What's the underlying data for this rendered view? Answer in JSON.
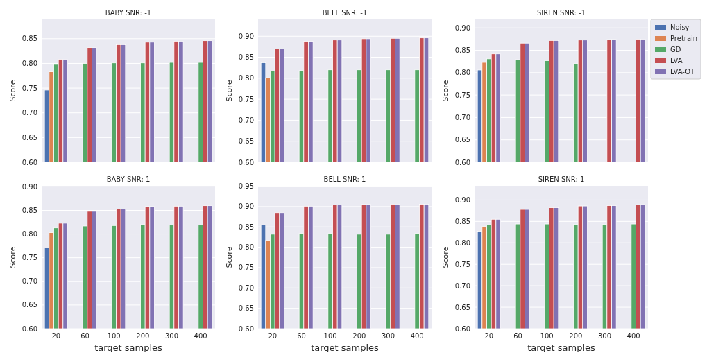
{
  "chart_data": [
    {
      "type": "bar",
      "title": "BABY  SNR: -1",
      "ylabel": "Score",
      "categories": [
        "20",
        "60",
        "100",
        "200",
        "300",
        "400"
      ],
      "ylim": [
        0.6,
        0.889
      ],
      "yticks": [
        {
          "value": 0.6,
          "label": "0.60"
        },
        {
          "value": 0.65,
          "label": "0.65"
        },
        {
          "value": 0.7,
          "label": "0.70"
        },
        {
          "value": 0.75,
          "label": "0.75"
        },
        {
          "value": 0.8,
          "label": "0.80"
        },
        {
          "value": 0.85,
          "label": "0.85"
        }
      ],
      "grid": "y",
      "tick_labels": "y",
      "series": [
        {
          "color": "#4c72b0",
          "values": [
            0.746,
            null,
            null,
            null,
            null,
            null
          ]
        },
        {
          "color": "#dd8452",
          "values": [
            0.783,
            null,
            null,
            null,
            null,
            null
          ]
        },
        {
          "color": "#55a868",
          "values": [
            0.798,
            0.8,
            0.801,
            0.801,
            0.802,
            0.802
          ]
        },
        {
          "color": "#c44e52",
          "values": [
            0.808,
            0.832,
            0.838,
            0.843,
            0.845,
            0.846
          ]
        },
        {
          "color": "#8172b3",
          "values": [
            0.808,
            0.832,
            0.838,
            0.843,
            0.845,
            0.846
          ]
        }
      ]
    },
    {
      "type": "bar",
      "title": "BELL  SNR: -1",
      "ylabel": "Score",
      "categories": [
        "20",
        "60",
        "100",
        "200",
        "300",
        "400"
      ],
      "ylim": [
        0.6,
        0.94
      ],
      "yticks": [
        {
          "value": 0.6,
          "label": "0.60"
        },
        {
          "value": 0.65,
          "label": "0.65"
        },
        {
          "value": 0.7,
          "label": "0.70"
        },
        {
          "value": 0.75,
          "label": "0.75"
        },
        {
          "value": 0.8,
          "label": "0.80"
        },
        {
          "value": 0.85,
          "label": "0.85"
        },
        {
          "value": 0.9,
          "label": "0.90"
        }
      ],
      "grid": "y",
      "tick_labels": "y",
      "series": [
        {
          "color": "#4c72b0",
          "values": [
            0.837,
            null,
            null,
            null,
            null,
            null
          ]
        },
        {
          "color": "#dd8452",
          "values": [
            0.801,
            null,
            null,
            null,
            null,
            null
          ]
        },
        {
          "color": "#55a868",
          "values": [
            0.817,
            0.818,
            0.82,
            0.82,
            0.82,
            0.82
          ]
        },
        {
          "color": "#c44e52",
          "values": [
            0.87,
            0.888,
            0.891,
            0.894,
            0.895,
            0.896
          ]
        },
        {
          "color": "#8172b3",
          "values": [
            0.87,
            0.888,
            0.891,
            0.894,
            0.895,
            0.896
          ]
        }
      ]
    },
    {
      "type": "bar",
      "title": "SIREN  SNR: -1",
      "ylabel": "Score",
      "categories": [
        "20",
        "60",
        "100",
        "200",
        "300",
        "400"
      ],
      "ylim": [
        0.6,
        0.919
      ],
      "yticks": [
        {
          "value": 0.6,
          "label": "0.60"
        },
        {
          "value": 0.65,
          "label": "0.65"
        },
        {
          "value": 0.7,
          "label": "0.70"
        },
        {
          "value": 0.75,
          "label": "0.75"
        },
        {
          "value": 0.8,
          "label": "0.80"
        },
        {
          "value": 0.85,
          "label": "0.85"
        },
        {
          "value": 0.9,
          "label": "0.90"
        }
      ],
      "grid": "y",
      "tick_labels": "y",
      "legend": "top right",
      "series": [
        {
          "name": "Noisy",
          "color": "#4c72b0",
          "values": [
            0.806,
            null,
            null,
            null,
            null,
            null
          ]
        },
        {
          "name": "Pretrain",
          "color": "#dd8452",
          "values": [
            0.823,
            null,
            null,
            null,
            null,
            null
          ]
        },
        {
          "name": "GD",
          "color": "#55a868",
          "values": [
            0.831,
            0.829,
            0.827,
            0.82,
            null,
            null
          ]
        },
        {
          "name": "LVA",
          "color": "#c44e52",
          "values": [
            0.842,
            0.866,
            0.872,
            0.873,
            0.874,
            0.875
          ]
        },
        {
          "name": "LVA-OT",
          "color": "#8172b3",
          "values": [
            0.842,
            0.866,
            0.872,
            0.873,
            0.874,
            0.875
          ]
        }
      ]
    },
    {
      "type": "bar",
      "title": "BABY  SNR: 1",
      "xlabel": "target samples",
      "ylabel": "Score",
      "categories": [
        "20",
        "60",
        "100",
        "200",
        "300",
        "400"
      ],
      "ylim": [
        0.6,
        0.902
      ],
      "yticks": [
        {
          "value": 0.6,
          "label": "0.60"
        },
        {
          "value": 0.65,
          "label": "0.65"
        },
        {
          "value": 0.7,
          "label": "0.70"
        },
        {
          "value": 0.75,
          "label": "0.75"
        },
        {
          "value": 0.8,
          "label": "0.80"
        },
        {
          "value": 0.85,
          "label": "0.85"
        },
        {
          "value": 0.9,
          "label": "0.90"
        }
      ],
      "grid": "y",
      "series": [
        {
          "color": "#4c72b0",
          "values": [
            0.771,
            null,
            null,
            null,
            null,
            null
          ]
        },
        {
          "color": "#dd8452",
          "values": [
            0.803,
            null,
            null,
            null,
            null,
            null
          ]
        },
        {
          "color": "#55a868",
          "values": [
            0.813,
            0.817,
            0.818,
            0.82,
            0.819,
            0.819
          ]
        },
        {
          "color": "#c44e52",
          "values": [
            0.823,
            0.848,
            0.853,
            0.858,
            0.859,
            0.86
          ]
        },
        {
          "color": "#8172b3",
          "values": [
            0.823,
            0.848,
            0.853,
            0.858,
            0.859,
            0.86
          ]
        }
      ]
    },
    {
      "type": "bar",
      "title": "BELL  SNR: 1",
      "xlabel": "target samples",
      "ylabel": "Score",
      "categories": [
        "20",
        "60",
        "100",
        "200",
        "300",
        "400"
      ],
      "ylim": [
        0.6,
        0.951
      ],
      "yticks": [
        {
          "value": 0.6,
          "label": "0.60"
        },
        {
          "value": 0.65,
          "label": "0.65"
        },
        {
          "value": 0.7,
          "label": "0.70"
        },
        {
          "value": 0.75,
          "label": "0.75"
        },
        {
          "value": 0.8,
          "label": "0.80"
        },
        {
          "value": 0.85,
          "label": "0.85"
        },
        {
          "value": 0.9,
          "label": "0.90"
        },
        {
          "value": 0.95,
          "label": "0.95"
        }
      ],
      "grid": "y",
      "series": [
        {
          "color": "#4c72b0",
          "values": [
            0.855,
            null,
            null,
            null,
            null,
            null
          ]
        },
        {
          "color": "#dd8452",
          "values": [
            0.817,
            null,
            null,
            null,
            null,
            null
          ]
        },
        {
          "color": "#55a868",
          "values": [
            0.832,
            0.834,
            0.834,
            0.832,
            0.832,
            0.834
          ]
        },
        {
          "color": "#c44e52",
          "values": [
            0.885,
            0.901,
            0.904,
            0.905,
            0.906,
            0.906
          ]
        },
        {
          "color": "#8172b3",
          "values": [
            0.885,
            0.901,
            0.904,
            0.905,
            0.906,
            0.906
          ]
        }
      ]
    },
    {
      "type": "bar",
      "title": "SIREN  SNR: 1",
      "xlabel": "target samples",
      "ylabel": "Score",
      "categories": [
        "20",
        "60",
        "100",
        "200",
        "300",
        "400"
      ],
      "ylim": [
        0.6,
        0.933
      ],
      "yticks": [
        {
          "value": 0.6,
          "label": "0.60"
        },
        {
          "value": 0.65,
          "label": "0.65"
        },
        {
          "value": 0.7,
          "label": "0.70"
        },
        {
          "value": 0.75,
          "label": "0.75"
        },
        {
          "value": 0.8,
          "label": "0.80"
        },
        {
          "value": 0.85,
          "label": "0.85"
        },
        {
          "value": 0.9,
          "label": "0.90"
        }
      ],
      "grid": "y",
      "series": [
        {
          "color": "#4c72b0",
          "values": [
            0.827,
            null,
            null,
            null,
            null,
            null
          ]
        },
        {
          "color": "#dd8452",
          "values": [
            0.838,
            null,
            null,
            null,
            null,
            null
          ]
        },
        {
          "color": "#55a868",
          "values": [
            0.842,
            0.844,
            0.844,
            0.843,
            0.843,
            0.844
          ]
        },
        {
          "color": "#c44e52",
          "values": [
            0.855,
            0.878,
            0.882,
            0.886,
            0.887,
            0.889
          ]
        },
        {
          "color": "#8172b3",
          "values": [
            0.855,
            0.878,
            0.882,
            0.886,
            0.887,
            0.889
          ]
        }
      ]
    }
  ]
}
